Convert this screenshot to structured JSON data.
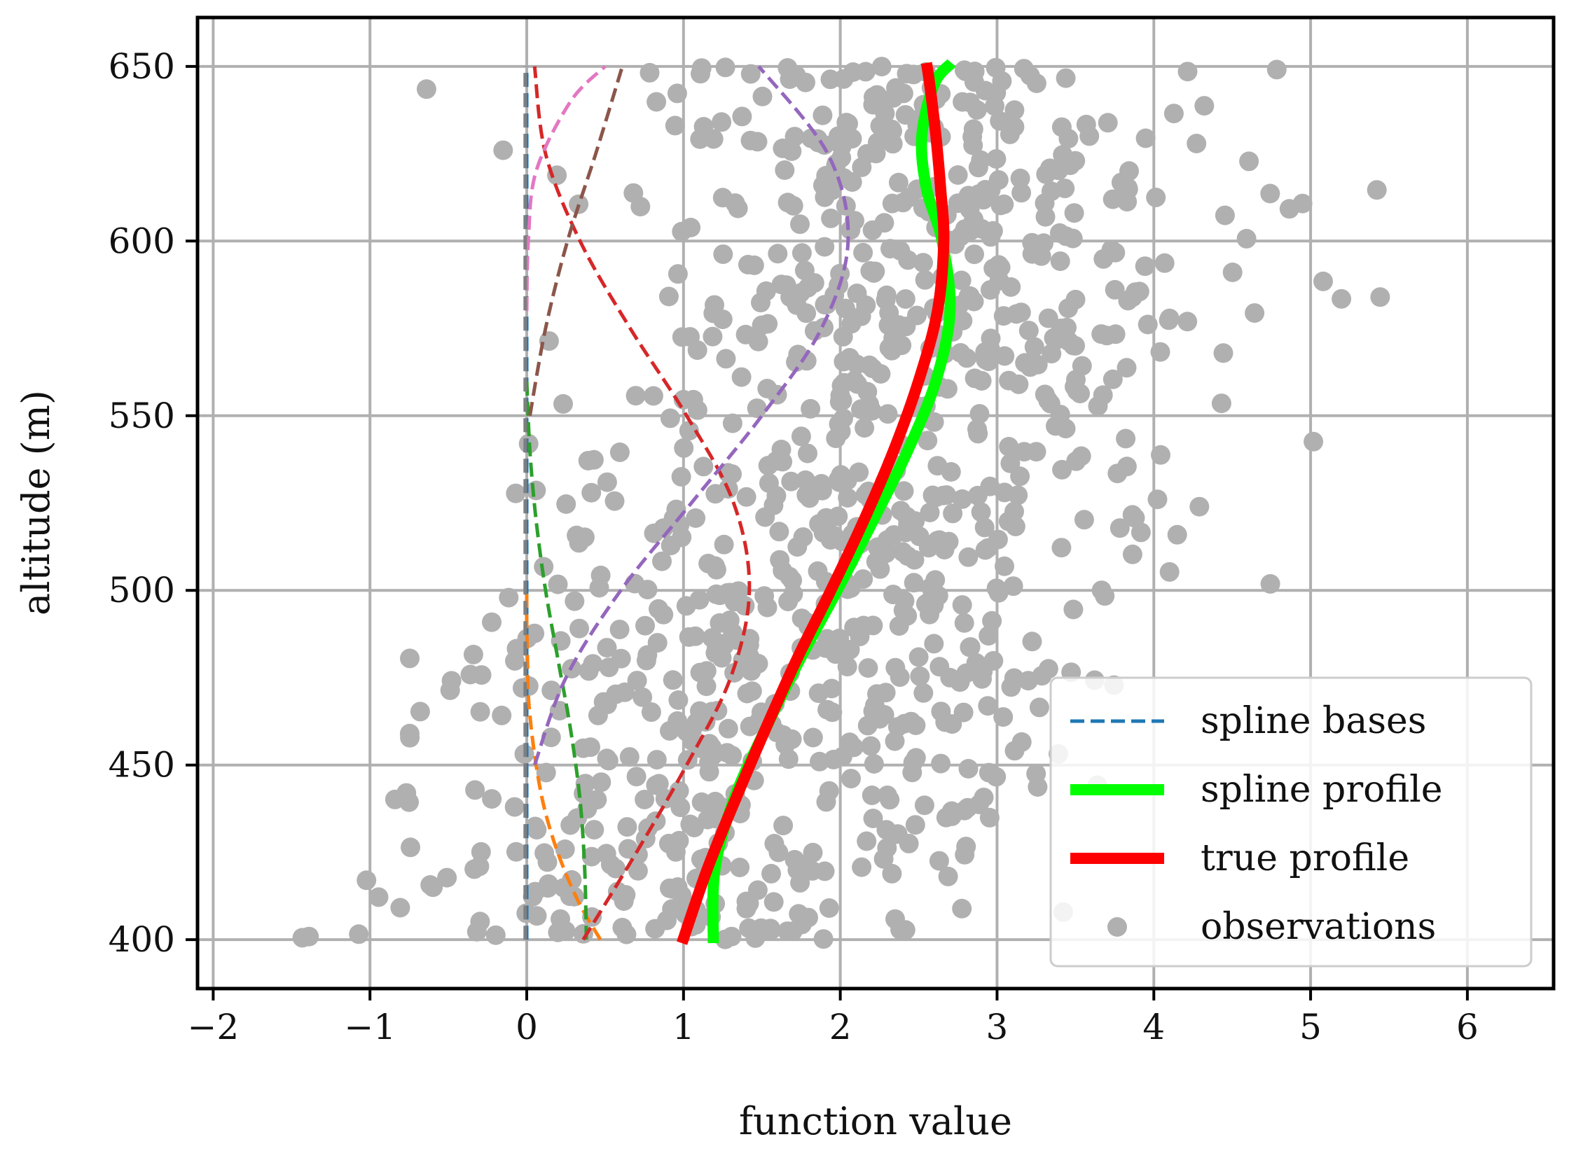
{
  "chart_data": {
    "type": "line",
    "title": "",
    "xlabel": "function value",
    "ylabel": "altitude (m)",
    "xlim": [
      -2.1,
      6.55
    ],
    "ylim": [
      386,
      664
    ],
    "x_ticks": [
      -2,
      -1,
      0,
      1,
      2,
      3,
      4,
      5,
      6
    ],
    "x_tick_labels": [
      "−2",
      "−1",
      "0",
      "1",
      "2",
      "3",
      "4",
      "5",
      "6"
    ],
    "y_ticks": [
      400,
      450,
      500,
      550,
      600,
      650
    ],
    "y_tick_labels": [
      "400",
      "450",
      "500",
      "550",
      "600",
      "650"
    ],
    "grid": true,
    "legend_position": "lower-right",
    "legend": [
      {
        "label": "spline bases",
        "style": "dashed",
        "color": "#1f77b4"
      },
      {
        "label": "spline profile",
        "style": "solid",
        "color": "#00ff00"
      },
      {
        "label": "true profile",
        "style": "solid",
        "color": "#ff0000"
      },
      {
        "label": "observations",
        "style": "marker",
        "color": "#b0b0b0"
      }
    ],
    "bases": [
      {
        "color": "#1f77b4",
        "altitude": [
          400,
          450,
          500,
          550,
          600,
          650
        ],
        "x": [
          0,
          0,
          0,
          0,
          0,
          0
        ]
      },
      {
        "color": "#ff7f0e",
        "altitude": [
          400,
          410,
          420,
          430,
          440,
          450,
          460,
          470,
          480,
          490,
          500
        ],
        "x": [
          0.47,
          0.34,
          0.24,
          0.16,
          0.1,
          0.06,
          0.03,
          0.01,
          0.005,
          0,
          0
        ]
      },
      {
        "color": "#2ca02c",
        "altitude": [
          400,
          420,
          440,
          460,
          480,
          500,
          520,
          540,
          560
        ],
        "x": [
          0.38,
          0.37,
          0.34,
          0.28,
          0.2,
          0.12,
          0.06,
          0.02,
          0
        ]
      },
      {
        "color": "#d62728",
        "altitude": [
          400,
          425,
          450,
          475,
          500,
          525,
          550,
          575,
          600,
          625,
          650
        ],
        "x": [
          0.36,
          0.7,
          1.02,
          1.3,
          1.42,
          1.32,
          1.02,
          0.66,
          0.34,
          0.12,
          0.05
        ]
      },
      {
        "color": "#9467bd",
        "altitude": [
          450,
          475,
          500,
          525,
          550,
          575,
          600,
          625,
          650
        ],
        "x": [
          0.05,
          0.25,
          0.6,
          1.05,
          1.5,
          1.88,
          2.05,
          1.92,
          1.48
        ]
      },
      {
        "color": "#8c564b",
        "altitude": [
          550,
          575,
          600,
          625,
          650
        ],
        "x": [
          0.02,
          0.12,
          0.26,
          0.44,
          0.61
        ]
      },
      {
        "color": "#e377c2",
        "altitude": [
          580,
          600,
          620,
          640,
          650
        ],
        "x": [
          0,
          0.01,
          0.06,
          0.28,
          0.5
        ]
      },
      {
        "color": "#7f7f7f",
        "altitude": [
          400,
          450,
          500,
          550,
          600,
          650
        ],
        "x": [
          -0.01,
          -0.01,
          -0.01,
          -0.01,
          -0.01,
          -0.01
        ]
      }
    ],
    "spline_profile": {
      "altitude": [
        399,
        420,
        440,
        460,
        480,
        500,
        520,
        540,
        560,
        580,
        600,
        615,
        630,
        645,
        651
      ],
      "x": [
        1.19,
        1.2,
        1.32,
        1.52,
        1.74,
        1.98,
        2.21,
        2.43,
        2.61,
        2.7,
        2.65,
        2.55,
        2.52,
        2.6,
        2.71
      ]
    },
    "true_profile": {
      "altitude": [
        399,
        420,
        440,
        460,
        480,
        500,
        520,
        540,
        560,
        580,
        600,
        615,
        630,
        645,
        651
      ],
      "x": [
        0.99,
        1.15,
        1.33,
        1.52,
        1.72,
        1.94,
        2.15,
        2.34,
        2.5,
        2.62,
        2.66,
        2.64,
        2.61,
        2.57,
        2.55
      ]
    },
    "observations_count": 1000
  }
}
